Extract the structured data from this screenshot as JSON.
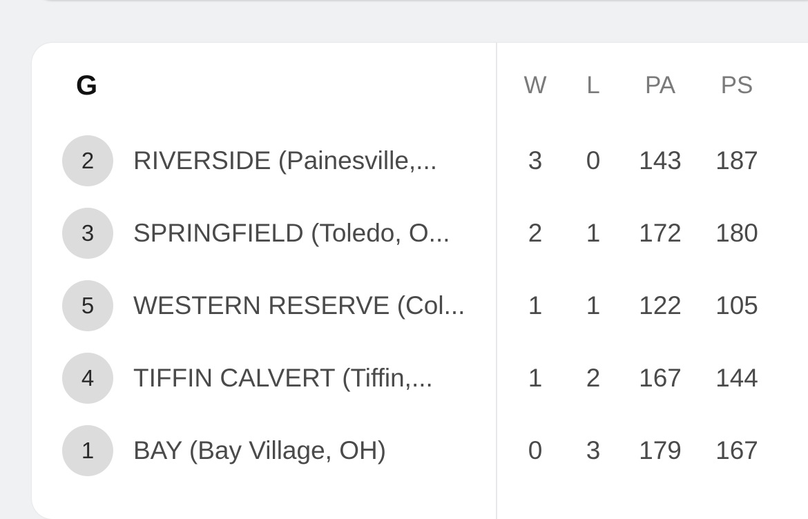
{
  "group": {
    "title": "G",
    "headers": {
      "w": "W",
      "l": "L",
      "pa": "PA",
      "ps": "PS"
    },
    "rows": [
      {
        "seed": "2",
        "team": "RIVERSIDE (Painesville,...",
        "w": "3",
        "l": "0",
        "pa": "143",
        "ps": "187"
      },
      {
        "seed": "3",
        "team": "SPRINGFIELD (Toledo, O...",
        "w": "2",
        "l": "1",
        "pa": "172",
        "ps": "180"
      },
      {
        "seed": "5",
        "team": "WESTERN RESERVE (Col...",
        "w": "1",
        "l": "1",
        "pa": "122",
        "ps": "105"
      },
      {
        "seed": "4",
        "team": "TIFFIN CALVERT (Tiffin,...",
        "w": "1",
        "l": "2",
        "pa": "167",
        "ps": "144"
      },
      {
        "seed": "1",
        "team": "BAY (Bay Village, OH)",
        "w": "0",
        "l": "3",
        "pa": "179",
        "ps": "167"
      }
    ]
  }
}
